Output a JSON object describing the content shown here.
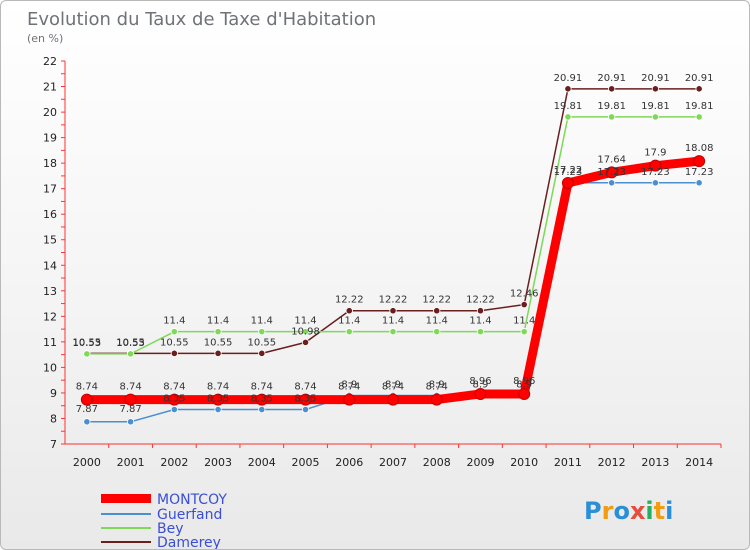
{
  "chart_data": {
    "type": "line",
    "title": "Evolution du Taux de Taxe d'Habitation",
    "subtitle": "(en %)",
    "x": [
      "2000",
      "2001",
      "2002",
      "2003",
      "2004",
      "2005",
      "2006",
      "2007",
      "2008",
      "2009",
      "2010",
      "2011",
      "2012",
      "2013",
      "2014"
    ],
    "yticks": [
      "7",
      "8",
      "9",
      "10",
      "11",
      "12",
      "13",
      "14",
      "15",
      "16",
      "17",
      "18",
      "19",
      "20",
      "21",
      "22"
    ],
    "ylim": [
      7,
      22
    ],
    "grid": false,
    "legend_position": "bottom-left",
    "series": [
      {
        "name": "MONTCOY",
        "color": "#ff0000",
        "values": [
          8.74,
          8.74,
          8.74,
          8.74,
          8.74,
          8.74,
          8.74,
          8.74,
          8.74,
          8.96,
          8.96,
          17.22,
          17.64,
          17.9,
          18.08
        ],
        "labels": [
          "8.74",
          "8.74",
          "8.74",
          "8.74",
          "8.74",
          "8.74",
          "8.74",
          "8.74",
          "8.74",
          "8.96",
          "8.96",
          "17.22",
          "17.64",
          "17.9",
          "18.08"
        ]
      },
      {
        "name": "Guerfand",
        "color": "#4a8fd0",
        "values": [
          7.87,
          7.87,
          8.35,
          8.35,
          8.35,
          8.35,
          8.9,
          8.9,
          8.9,
          8.9,
          8.9,
          17.23,
          17.23,
          17.23,
          17.23
        ],
        "labels": [
          "7.87",
          "7.87",
          "8.35",
          "8.35",
          "8.35",
          "8.35",
          "8.9",
          "8.9",
          "8.9",
          "8.9",
          "8.9",
          "17.23",
          "17.23",
          "17.23",
          "17.23"
        ]
      },
      {
        "name": "Bey",
        "color": "#7ed957",
        "values": [
          10.53,
          10.53,
          11.4,
          11.4,
          11.4,
          11.4,
          11.4,
          11.4,
          11.4,
          11.4,
          11.4,
          19.81,
          19.81,
          19.81,
          19.81
        ],
        "labels": [
          "10.53",
          "10.53",
          "11.4",
          "11.4",
          "11.4",
          "11.4",
          "11.4",
          "11.4",
          "11.4",
          "11.4",
          "11.4",
          "19.81",
          "19.81",
          "19.81",
          "19.81"
        ]
      },
      {
        "name": "Damerey",
        "color": "#6b1e1e",
        "values": [
          10.55,
          10.55,
          10.55,
          10.55,
          10.55,
          10.98,
          12.22,
          12.22,
          12.22,
          12.22,
          12.46,
          20.91,
          20.91,
          20.91,
          20.91
        ],
        "labels": [
          "10.55",
          "10.55",
          "10.55",
          "10.55",
          "10.55",
          "10.98",
          "12.22",
          "12.22",
          "12.22",
          "12.22",
          "12.46",
          "20.91",
          "20.91",
          "20.91",
          "20.91"
        ]
      }
    ]
  },
  "logo": {
    "text": "Proxiti"
  }
}
